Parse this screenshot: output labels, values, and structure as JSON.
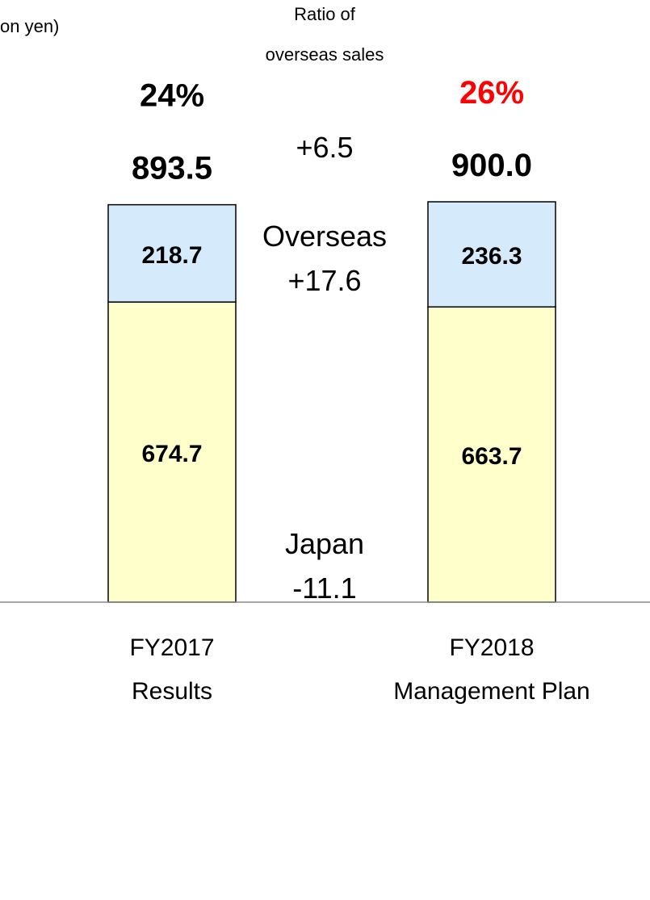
{
  "chart_data": {
    "type": "bar",
    "stacked": true,
    "unit_label": "on yen)",
    "ratio_label": [
      "Ratio of",
      "overseas sales"
    ],
    "categories": [
      [
        "FY2017",
        "Results"
      ],
      [
        "FY2018",
        "Management Plan"
      ]
    ],
    "series": [
      {
        "name": "Japan",
        "values": [
          674.7,
          663.7
        ],
        "color": "#ffffcc"
      },
      {
        "name": "Overseas",
        "values": [
          218.7,
          236.3
        ],
        "color": "#d5ebfb"
      }
    ],
    "totals": [
      "893.5",
      "900.0"
    ],
    "ratios": [
      "24%",
      "26%"
    ],
    "ratio_colors": [
      "#000000",
      "#ff0000"
    ],
    "total_change": "+6.5",
    "segment_changes": [
      {
        "series": "Japan",
        "change": "-11.1"
      },
      {
        "series": "Overseas",
        "change": "+17.6"
      }
    ],
    "data_labels": [
      [
        "674.7",
        "663.7"
      ],
      [
        "218.7",
        "236.3"
      ]
    ],
    "ylim": [
      0,
      900.0
    ],
    "grid": false,
    "legend": "none"
  }
}
